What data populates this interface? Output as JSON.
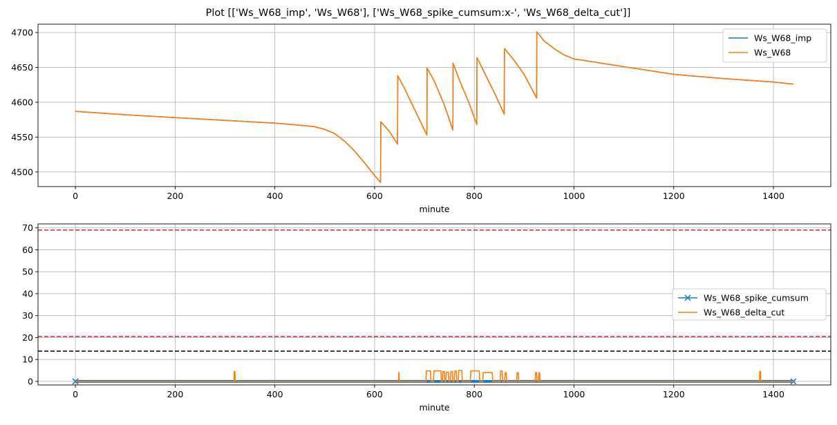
{
  "figure": {
    "title": "Plot [['Ws_W68_imp', 'Ws_W68'], ['Ws_W68_spike_cumsum:x-', 'Ws_W68_delta_cut']]"
  },
  "colors": {
    "series_blue": "#1f77b4",
    "series_orange": "#ff7f0e",
    "hline_red": "#d62728",
    "hline_black": "#000000",
    "grid": "#b0b0b0"
  },
  "chart_data": [
    {
      "type": "line",
      "xlabel": "minute",
      "ylabel": "",
      "xlim": [
        -75,
        1515
      ],
      "ylim": [
        4479,
        4712
      ],
      "xticks": [
        0,
        200,
        400,
        600,
        800,
        1000,
        1200,
        1400
      ],
      "yticks": [
        4500,
        4550,
        4600,
        4650,
        4700
      ],
      "grid": true,
      "legend": "top-right",
      "series": [
        {
          "name": "Ws_W68_imp",
          "color": "#1f77b4",
          "x": [
            0,
            100,
            200,
            300,
            400,
            450,
            480,
            500,
            520,
            540,
            560,
            580,
            600,
            612,
            612.5,
            620,
            630,
            646,
            646.5,
            660,
            680,
            705,
            705.5,
            720,
            740,
            757,
            757.5,
            770,
            790,
            805,
            805.5,
            820,
            840,
            860,
            860.5,
            880,
            900,
            925,
            925.5,
            940,
            960,
            980,
            1000,
            1020,
            1100,
            1200,
            1300,
            1400,
            1440
          ],
          "values": [
            4587,
            4582,
            4578,
            4574,
            4570,
            4567,
            4565,
            4561,
            4555,
            4544,
            4530,
            4513,
            4495,
            4485,
            4572,
            4566,
            4558,
            4540,
            4638,
            4620,
            4590,
            4553,
            4649,
            4630,
            4596,
            4560,
            4656,
            4632,
            4598,
            4568,
            4664,
            4643,
            4614,
            4583,
            4677,
            4660,
            4640,
            4606,
            4701,
            4688,
            4677,
            4668,
            4662,
            4660,
            4651,
            4640,
            4634,
            4629,
            4626
          ]
        },
        {
          "name": "Ws_W68",
          "color": "#ff7f0e",
          "x": [
            0,
            100,
            200,
            300,
            400,
            450,
            480,
            500,
            520,
            540,
            560,
            580,
            600,
            612,
            612.5,
            620,
            630,
            646,
            646.5,
            660,
            680,
            705,
            705.5,
            720,
            740,
            757,
            757.5,
            770,
            790,
            805,
            805.5,
            820,
            840,
            860,
            860.5,
            880,
            900,
            925,
            925.5,
            940,
            960,
            980,
            1000,
            1020,
            1100,
            1200,
            1300,
            1400,
            1440
          ],
          "values": [
            4587,
            4582,
            4578,
            4574,
            4570,
            4567,
            4565,
            4561,
            4555,
            4544,
            4530,
            4513,
            4495,
            4485,
            4572,
            4566,
            4558,
            4540,
            4638,
            4620,
            4590,
            4553,
            4649,
            4630,
            4596,
            4560,
            4656,
            4632,
            4598,
            4568,
            4664,
            4643,
            4614,
            4583,
            4677,
            4660,
            4640,
            4606,
            4701,
            4688,
            4677,
            4668,
            4662,
            4660,
            4651,
            4640,
            4634,
            4629,
            4626
          ]
        }
      ]
    },
    {
      "type": "line",
      "xlabel": "minute",
      "ylabel": "",
      "xlim": [
        -75,
        1515
      ],
      "ylim": [
        -1.6,
        71.8
      ],
      "xticks": [
        0,
        200,
        400,
        600,
        800,
        1000,
        1200,
        1400
      ],
      "yticks": [
        0,
        10,
        20,
        30,
        40,
        50,
        60,
        70
      ],
      "grid": true,
      "legend": "center-right",
      "hlines": [
        {
          "y": 69,
          "color": "#d62728",
          "style": "dashed"
        },
        {
          "y": 20.5,
          "color": "#d62728",
          "style": "dashed"
        },
        {
          "y": 13.8,
          "color": "#000000",
          "style": "dashed"
        }
      ],
      "series": [
        {
          "name": "Ws_W68_spike_cumsum",
          "color": "#1f77b4",
          "marker": "x",
          "x": [
            0,
            1440
          ],
          "values": [
            0,
            0
          ]
        },
        {
          "name": "Ws_W68_delta_cut",
          "color": "#ff7f0e",
          "x": [
            0,
            318,
            318.5,
            320,
            320.5,
            648,
            648.5,
            649,
            649.5,
            703,
            704,
            712,
            713,
            718,
            719,
            733,
            734,
            736,
            737,
            740,
            741,
            743,
            744,
            748,
            749,
            752,
            753,
            756,
            757,
            760,
            761,
            764,
            765,
            768,
            769,
            775,
            776,
            792,
            793,
            810,
            811,
            817,
            818,
            836,
            837,
            852,
            853,
            856,
            857,
            861,
            862,
            864,
            865,
            885,
            886,
            888,
            889,
            922,
            923,
            925,
            926,
            929,
            930,
            931,
            932,
            1372,
            1372.5,
            1374,
            1374.5,
            1440
          ],
          "values": [
            0,
            0,
            4.5,
            4.5,
            0,
            0,
            4,
            4,
            0,
            0,
            4.8,
            4.8,
            0,
            0,
            4.8,
            4.8,
            0,
            0,
            4.5,
            4.5,
            0,
            0,
            4.2,
            4.2,
            0,
            0,
            4.5,
            4.5,
            0,
            0,
            4.8,
            4.8,
            0,
            0,
            5,
            5,
            0,
            0,
            4.8,
            4.8,
            0,
            0,
            4,
            4,
            0,
            0,
            4.8,
            4.8,
            0,
            0,
            4,
            4,
            0,
            0,
            4,
            4,
            0,
            0,
            4,
            4,
            0,
            0,
            4,
            4,
            0,
            0,
            4.5,
            4.5,
            0,
            0
          ]
        }
      ]
    }
  ]
}
